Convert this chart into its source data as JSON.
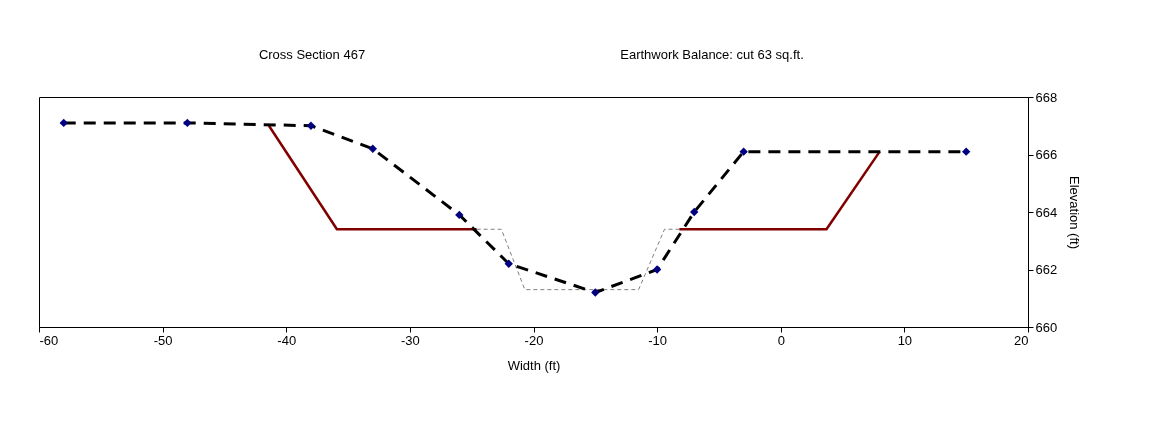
{
  "chart_data": {
    "type": "line",
    "title": "Cross Section 467",
    "annotations": [
      "Earthwork Balance: cut   63 sq.ft."
    ],
    "xlabel": "Width (ft)",
    "ylabel": "Elevation (ft)",
    "xlim": [
      -60,
      20
    ],
    "xticks": [
      -60,
      -50,
      -40,
      -30,
      -20,
      -10,
      0,
      10,
      20
    ],
    "ylim": [
      660,
      668
    ],
    "yticks": [
      660,
      662,
      664,
      666,
      668
    ],
    "grid": false,
    "series": [
      {
        "type": "line",
        "color": "#808080",
        "line_style": "dashed",
        "marker": "none",
        "x": [
          -24.6,
          -22.6,
          -20.7,
          -11.5,
          -9.4,
          -8.2
        ],
        "values": [
          663.4,
          663.4,
          661.3,
          661.3,
          663.4,
          663.4
        ]
      },
      {
        "type": "line",
        "color": "#800000",
        "line_style": "solid",
        "marker": "none",
        "x": [
          -41.4,
          -35.9,
          -24.6,
          -16,
          -8.2,
          3.7,
          8.0
        ],
        "values": [
          667.0,
          663.4,
          663.4,
          null,
          663.4,
          663.4,
          666.1
        ]
      },
      {
        "type": "line",
        "color": "#000000",
        "line_style": "dashed",
        "marker": "diamond",
        "colors": [
          "#000080",
          "#000080",
          "#000080",
          "#000080",
          "#000080",
          "#000080",
          "#000080",
          "#000080",
          "#000080",
          "#000080",
          "#000080"
        ],
        "x": [
          -58,
          -48,
          -38,
          -33,
          -26,
          -22,
          -15,
          -10,
          -7,
          -3,
          15
        ],
        "values": [
          667.1,
          667.1,
          667.0,
          666.2,
          663.9,
          662.2,
          661.2,
          662.0,
          664.0,
          666.1,
          666.1
        ]
      }
    ]
  }
}
